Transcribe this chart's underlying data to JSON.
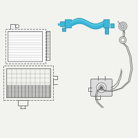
{
  "bg_color": "#f2f2ee",
  "highlight_color": "#3db8d8",
  "highlight_dark": "#2a8aaa",
  "highlight_light": "#7dd8ed",
  "line_color": "#666666",
  "dark_color": "#444444",
  "light_gray": "#aaaaaa",
  "fill_gray": "#dddddd",
  "dark_gray": "#888888",
  "white": "#ffffff"
}
